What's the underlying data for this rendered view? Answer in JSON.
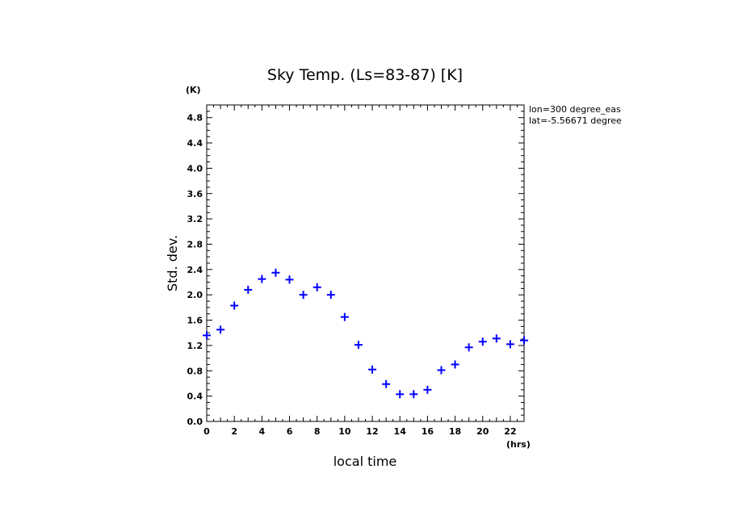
{
  "chart_data": {
    "type": "scatter",
    "title": "Sky Temp. (Ls=83-87) [K]",
    "xlabel": "local time",
    "ylabel": "Std. dev.",
    "x_unit": "(hrs)",
    "y_unit": "(K)",
    "xlim": [
      0,
      23
    ],
    "ylim": [
      0,
      5
    ],
    "x_ticks": [
      0,
      2,
      4,
      6,
      8,
      10,
      12,
      14,
      16,
      18,
      20,
      22
    ],
    "y_ticks": [
      0.0,
      0.4,
      0.8,
      1.2,
      1.6,
      2.0,
      2.4,
      2.8,
      3.2,
      3.6,
      4.0,
      4.4,
      4.8
    ],
    "x_tick_labels": [
      "0",
      "2",
      "4",
      "6",
      "8",
      "10",
      "12",
      "14",
      "16",
      "18",
      "20",
      "22"
    ],
    "y_tick_labels": [
      "0.0",
      "0.4",
      "0.8",
      "1.2",
      "1.6",
      "2.0",
      "2.4",
      "2.8",
      "3.2",
      "3.6",
      "4.0",
      "4.4",
      "4.8"
    ],
    "marker": "plus",
    "marker_color": "#0000ff",
    "x": [
      0,
      1,
      2,
      3,
      4,
      5,
      6,
      7,
      8,
      9,
      10,
      11,
      12,
      13,
      14,
      15,
      16,
      17,
      18,
      19,
      20,
      21,
      22,
      23
    ],
    "y": [
      1.36,
      1.45,
      1.83,
      2.08,
      2.25,
      2.35,
      2.24,
      2.0,
      2.12,
      2.0,
      1.65,
      1.21,
      0.82,
      0.59,
      0.43,
      0.43,
      0.5,
      0.81,
      0.9,
      1.17,
      1.26,
      1.31,
      1.22,
      1.28
    ],
    "grid": false,
    "annotations": [
      "lon=300 degree_eas",
      "lat=-5.56671 degree"
    ]
  }
}
